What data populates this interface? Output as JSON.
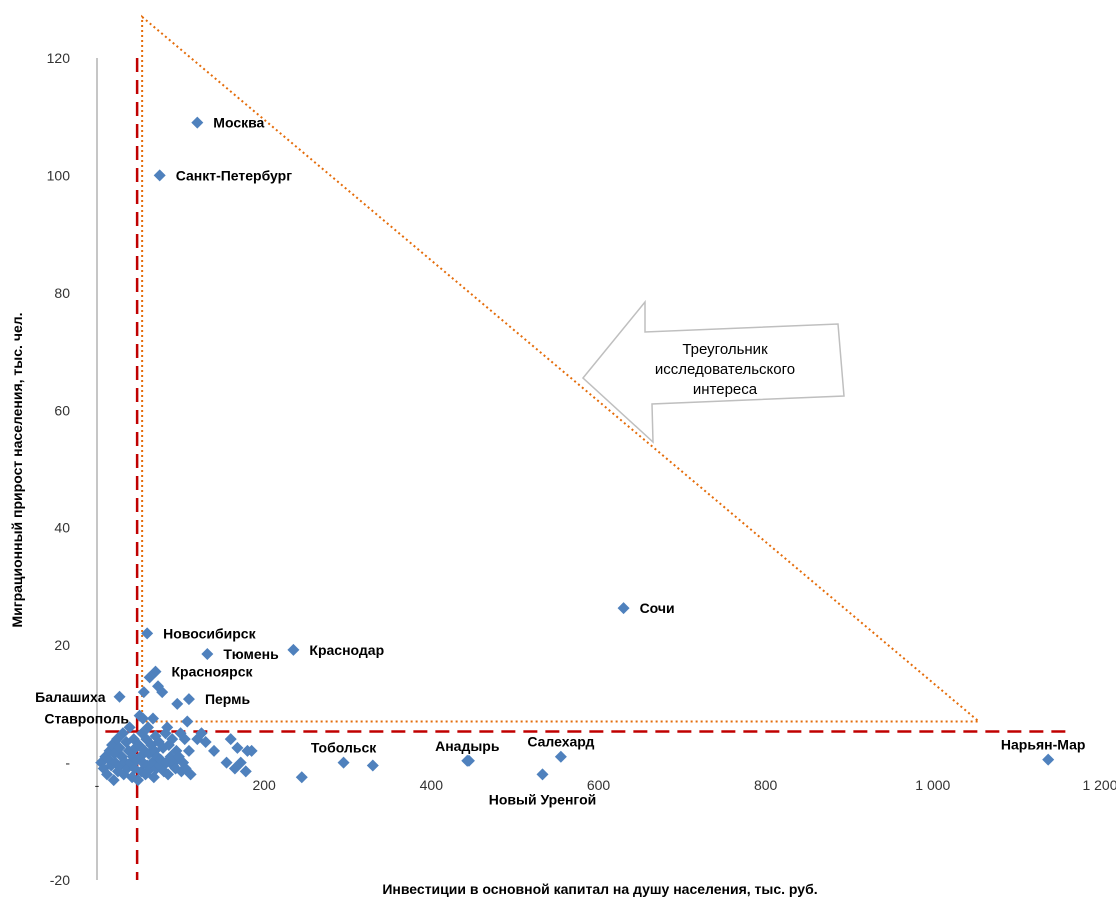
{
  "chart_data": {
    "type": "scatter",
    "xlabel": "Инвестиции в основной капитал на душу населения,  тыс. руб.",
    "ylabel": "Миграционный прирост населения, тыс. чел.",
    "xlim": [
      0,
      1200
    ],
    "ylim": [
      -20,
      120
    ],
    "x_ticks": [
      {
        "value": 0,
        "label": "-"
      },
      {
        "value": 200,
        "label": "200"
      },
      {
        "value": 400,
        "label": "400"
      },
      {
        "value": 600,
        "label": "600"
      },
      {
        "value": 800,
        "label": "800"
      },
      {
        "value": 1000,
        "label": "1 000"
      },
      {
        "value": 1200,
        "label": "1 200"
      }
    ],
    "y_ticks": [
      {
        "value": -20,
        "label": "-20"
      },
      {
        "value": 0,
        "label": "-"
      },
      {
        "value": 20,
        "label": "20"
      },
      {
        "value": 40,
        "label": "40"
      },
      {
        "value": 60,
        "label": "60"
      },
      {
        "value": 80,
        "label": "80"
      },
      {
        "value": 100,
        "label": "100"
      },
      {
        "value": 120,
        "label": "120"
      }
    ],
    "grid": false,
    "marker_color": "#4f81bd",
    "labeled_points": [
      {
        "label": "Москва",
        "x": 120,
        "y": 109,
        "side": "right"
      },
      {
        "label": "Санкт-Петербург",
        "x": 75,
        "y": 100,
        "side": "right"
      },
      {
        "label": "Сочи",
        "x": 630,
        "y": 26.3,
        "side": "right"
      },
      {
        "label": "Новосибирск",
        "x": 60,
        "y": 22,
        "side": "right"
      },
      {
        "label": "Краснодар",
        "x": 235,
        "y": 19.2,
        "side": "right"
      },
      {
        "label": "Тюмень",
        "x": 132,
        "y": 18.5,
        "side": "right"
      },
      {
        "label": "Красноярск",
        "x": 70,
        "y": 15.5,
        "side": "right"
      },
      {
        "label": "Пермь",
        "x": 110,
        "y": 10.8,
        "side": "right"
      },
      {
        "label": "Балашиха",
        "x": 27,
        "y": 11.2,
        "side": "left"
      },
      {
        "label": "Ставрополь",
        "x": 55,
        "y": 7.5,
        "side": "left"
      },
      {
        "label": "Тобольск",
        "x": 295,
        "y": 0,
        "side": "above"
      },
      {
        "label": "Анадырь",
        "x": 443,
        "y": 0.3,
        "side": "above"
      },
      {
        "label": "Салехард",
        "x": 555,
        "y": 1,
        "side": "above"
      },
      {
        "label": "Нарьян-Мар",
        "x": 1138,
        "y": 0.5,
        "side": "above"
      },
      {
        "label": "Новый Уренгой",
        "x": 533,
        "y": -2,
        "side": "below"
      }
    ],
    "points": [
      [
        5,
        0
      ],
      [
        8,
        -1
      ],
      [
        10,
        1
      ],
      [
        12,
        -2
      ],
      [
        14,
        0.5
      ],
      [
        15,
        2
      ],
      [
        17,
        -0.5
      ],
      [
        18,
        3
      ],
      [
        20,
        -3
      ],
      [
        21,
        1.5
      ],
      [
        22,
        0
      ],
      [
        24,
        4
      ],
      [
        25,
        -1.5
      ],
      [
        27,
        2.5
      ],
      [
        28,
        -0.5
      ],
      [
        30,
        1
      ],
      [
        31,
        5
      ],
      [
        32,
        -2
      ],
      [
        34,
        0
      ],
      [
        35,
        3.5
      ],
      [
        36,
        -1
      ],
      [
        38,
        2
      ],
      [
        39,
        6
      ],
      [
        40,
        0
      ],
      [
        42,
        -2.5
      ],
      [
        43,
        1
      ],
      [
        44,
        4
      ],
      [
        45,
        -1
      ],
      [
        46,
        2.5
      ],
      [
        48,
        0.5
      ],
      [
        49,
        -3
      ],
      [
        50,
        3
      ],
      [
        51,
        8
      ],
      [
        52,
        1
      ],
      [
        53,
        -1.5
      ],
      [
        54,
        5
      ],
      [
        55,
        0
      ],
      [
        56,
        12
      ],
      [
        57,
        2
      ],
      [
        58,
        -2
      ],
      [
        59,
        4
      ],
      [
        60,
        -0.5
      ],
      [
        61,
        6
      ],
      [
        62,
        1.5
      ],
      [
        63,
        14.5
      ],
      [
        64,
        -1
      ],
      [
        65,
        3
      ],
      [
        66,
        0
      ],
      [
        67,
        7.5
      ],
      [
        68,
        -2.5
      ],
      [
        69,
        2
      ],
      [
        70,
        4.5
      ],
      [
        71,
        -1
      ],
      [
        72,
        1
      ],
      [
        73,
        13
      ],
      [
        74,
        3.5
      ],
      [
        75,
        -0.5
      ],
      [
        76,
        0.5
      ],
      [
        78,
        12
      ],
      [
        79,
        2.5
      ],
      [
        80,
        -1.5
      ],
      [
        82,
        5
      ],
      [
        83,
        0
      ],
      [
        84,
        6
      ],
      [
        85,
        -2
      ],
      [
        86,
        3
      ],
      [
        88,
        1
      ],
      [
        90,
        4
      ],
      [
        91,
        -0.5
      ],
      [
        92,
        0
      ],
      [
        94,
        -1
      ],
      [
        95,
        2
      ],
      [
        96,
        10
      ],
      [
        98,
        1
      ],
      [
        100,
        5
      ],
      [
        101,
        -1.5
      ],
      [
        103,
        0
      ],
      [
        105,
        4
      ],
      [
        106,
        -1
      ],
      [
        108,
        7
      ],
      [
        110,
        2
      ],
      [
        112,
        -2
      ],
      [
        120,
        4
      ],
      [
        125,
        5
      ],
      [
        130,
        3.5
      ],
      [
        140,
        2
      ],
      [
        155,
        0
      ],
      [
        160,
        4
      ],
      [
        165,
        -1
      ],
      [
        168,
        2.5
      ],
      [
        172,
        0
      ],
      [
        178,
        -1.5
      ],
      [
        180,
        2
      ],
      [
        185,
        2
      ],
      [
        245,
        -2.5
      ],
      [
        330,
        -0.5
      ],
      [
        445,
        0.3
      ]
    ],
    "annotations": {
      "triangle": {
        "vertices": [
          [
            54,
            127
          ],
          [
            1055,
            7
          ],
          [
            54,
            7
          ]
        ],
        "color": "#e46c0a",
        "style": "dotted"
      },
      "thresholds": [
        {
          "orientation": "vertical",
          "x": 48,
          "y_from": -20,
          "y_to": 120
        },
        {
          "orientation": "horizontal",
          "y": 5.3,
          "x_from": 10,
          "x_to": 1165
        }
      ],
      "threshold_color": "#c00000",
      "arrow_text": [
        "Треугольник",
        "исследовательского",
        "интереса"
      ]
    }
  }
}
